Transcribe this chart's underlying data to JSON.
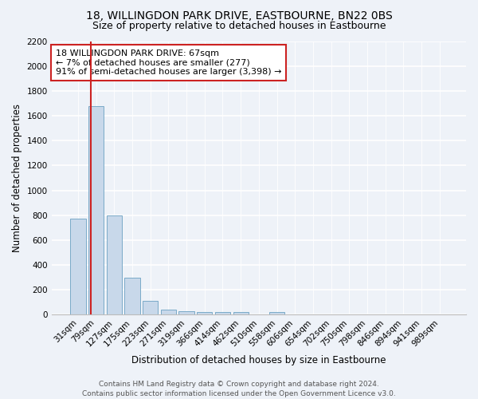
{
  "title": "18, WILLINGDON PARK DRIVE, EASTBOURNE, BN22 0BS",
  "subtitle": "Size of property relative to detached houses in Eastbourne",
  "xlabel": "Distribution of detached houses by size in Eastbourne",
  "ylabel": "Number of detached properties",
  "footer": "Contains HM Land Registry data © Crown copyright and database right 2024.\nContains public sector information licensed under the Open Government Licence v3.0.",
  "categories": [
    "31sqm",
    "79sqm",
    "127sqm",
    "175sqm",
    "223sqm",
    "271sqm",
    "319sqm",
    "366sqm",
    "414sqm",
    "462sqm",
    "510sqm",
    "558sqm",
    "606sqm",
    "654sqm",
    "702sqm",
    "750sqm",
    "798sqm",
    "846sqm",
    "894sqm",
    "941sqm",
    "989sqm"
  ],
  "values": [
    770,
    1680,
    800,
    300,
    110,
    40,
    28,
    25,
    20,
    20,
    0,
    20,
    0,
    0,
    0,
    0,
    0,
    0,
    0,
    0,
    0
  ],
  "bar_color": "#c8d8ea",
  "bar_edge_color": "#7aaac8",
  "annotation_line_color": "#cc2222",
  "annotation_box_color": "#cc2222",
  "annotation_box_text_line1": "18 WILLINGDON PARK DRIVE: 67sqm",
  "annotation_box_text_line2": "← 7% of detached houses are smaller (277)",
  "annotation_box_text_line3": "91% of semi-detached houses are larger (3,398) →",
  "ylim": [
    0,
    2200
  ],
  "yticks": [
    0,
    200,
    400,
    600,
    800,
    1000,
    1200,
    1400,
    1600,
    1800,
    2000,
    2200
  ],
  "bg_color": "#eef2f8",
  "grid_color": "#ffffff",
  "title_fontsize": 10,
  "subtitle_fontsize": 9,
  "axis_label_fontsize": 8.5,
  "tick_fontsize": 7.5,
  "annotation_fontsize": 8,
  "footer_fontsize": 6.5,
  "vline_x": 0.72
}
